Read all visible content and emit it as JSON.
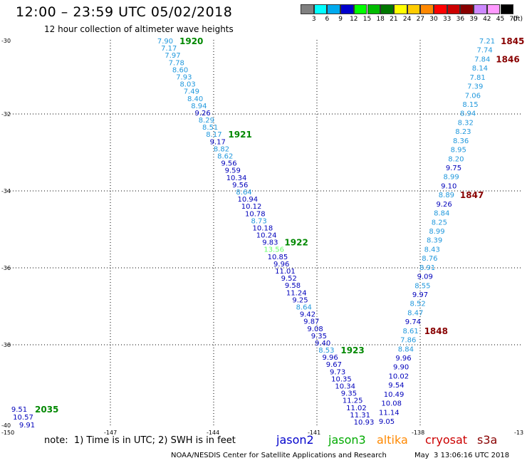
{
  "header": {
    "title": "12:00 – 23:59 UTC 05/02/2018",
    "subtitle": "12 hour collection of altimeter wave heights"
  },
  "legend": {
    "unit": "(ft)",
    "bins": [
      {
        "label": "3",
        "color": "#808080"
      },
      {
        "label": "6",
        "color": "#00ffff"
      },
      {
        "label": "9",
        "color": "#00aaee"
      },
      {
        "label": "12",
        "color": "#0000cc"
      },
      {
        "label": "15",
        "color": "#00ff00"
      },
      {
        "label": "18",
        "color": "#00bb00"
      },
      {
        "label": "21",
        "color": "#007700"
      },
      {
        "label": "24",
        "color": "#ffff00"
      },
      {
        "label": "27",
        "color": "#ffcc00"
      },
      {
        "label": "30",
        "color": "#ff8800"
      },
      {
        "label": "33",
        "color": "#ff0000"
      },
      {
        "label": "36",
        "color": "#cc0000"
      },
      {
        "label": "39",
        "color": "#880000"
      },
      {
        "label": "42",
        "color": "#cc88ff"
      },
      {
        "label": "45",
        "color": "#ff99ff"
      },
      {
        "label": "70",
        "color": "#000000"
      }
    ]
  },
  "colors": {
    "swh_lt6": "#00aaff",
    "swh_lt9": "#2299dd",
    "swh_lt12": "#0000bb",
    "swh_ge12": "#66ff66",
    "label_jason3": "#008800",
    "label_cryosat": "#880000",
    "grid": "#000000"
  },
  "axes": {
    "lat_labels": [
      "-30",
      "-32",
      "-34",
      "-36",
      "-38",
      "-40"
    ],
    "lon_labels": [
      "-150",
      "-147",
      "-144",
      "-141",
      "-138",
      "-13"
    ]
  },
  "tracks": [
    {
      "id": "1920",
      "values": [
        "7.90",
        "7.17",
        "7.97",
        "7.78",
        "8.60",
        "7.93",
        "8.03",
        "7.49",
        "8.40",
        "8.94",
        "9.26",
        "8.29",
        "8.51",
        "8.17",
        "9.17",
        "8.82",
        "8.62",
        "9.56",
        "9.59",
        "10.34",
        "9.56",
        "8.64",
        "10.94",
        "10.12",
        "10.78",
        "8.73",
        "10.18",
        "10.24",
        "9.83",
        "13.56",
        "10.85",
        "9.96",
        "11.01",
        "9.52",
        "9.58",
        "11.24",
        "9.25",
        "8.64",
        "9.42",
        "9.87",
        "9.08",
        "9.35",
        "9.40",
        "8.53",
        "9.96",
        "9.67",
        "9.73",
        "10.35",
        "10.34",
        "9.35",
        "11.25",
        "11.02",
        "11.31",
        "10.93"
      ],
      "labels": [
        {
          "text": "1920",
          "at": 0
        },
        {
          "text": "1921",
          "at": 13
        },
        {
          "text": "1922",
          "at": 28
        },
        {
          "text": "1923",
          "at": 43
        }
      ]
    },
    {
      "id": "1845",
      "values": [
        "7.21",
        "7.74",
        "7.84",
        "8.14",
        "7.81",
        "7.39",
        "7.06",
        "8.15",
        "8.94",
        "8.32",
        "8.23",
        "8.36",
        "8.95",
        "8.20",
        "9.75",
        "8.99",
        "9.10",
        "8.89",
        "9.26",
        "8.84",
        "8.25",
        "8.99",
        "8.39",
        "8.43",
        "8.76",
        "8.91",
        "9.09",
        "8.55",
        "9.97",
        "8.52",
        "8.47",
        "9.74",
        "8.61",
        "7.86",
        "8.84",
        "9.96",
        "9.90",
        "10.02",
        "9.54",
        "10.49",
        "10.08",
        "11.14",
        "9.05"
      ],
      "labels": [
        {
          "text": "1845",
          "at": 0
        },
        {
          "text": "1846",
          "at": 2
        },
        {
          "text": "1847",
          "at": 17
        },
        {
          "text": "1848",
          "at": 32
        }
      ]
    },
    {
      "id": "2035",
      "values": [
        "9.51",
        "10.57",
        "9.91"
      ],
      "labels": [
        {
          "text": "2035",
          "at": 0
        }
      ]
    }
  ],
  "footer": {
    "note": "note:  1) Time is in UTC; 2) SWH is in feet",
    "satellites": [
      {
        "name": "jason2",
        "color": "#0000cc"
      },
      {
        "name": "jason3",
        "color": "#00aa00"
      },
      {
        "name": "altika",
        "color": "#ff8800"
      },
      {
        "name": "cryosat",
        "color": "#cc0000"
      },
      {
        "name": "s3a",
        "color": "#880000"
      }
    ],
    "credit": "NOAA/NESDIS Center for Satellite Applications and Research",
    "timestamp": "May  3 13:06:16 UTC 2018"
  }
}
